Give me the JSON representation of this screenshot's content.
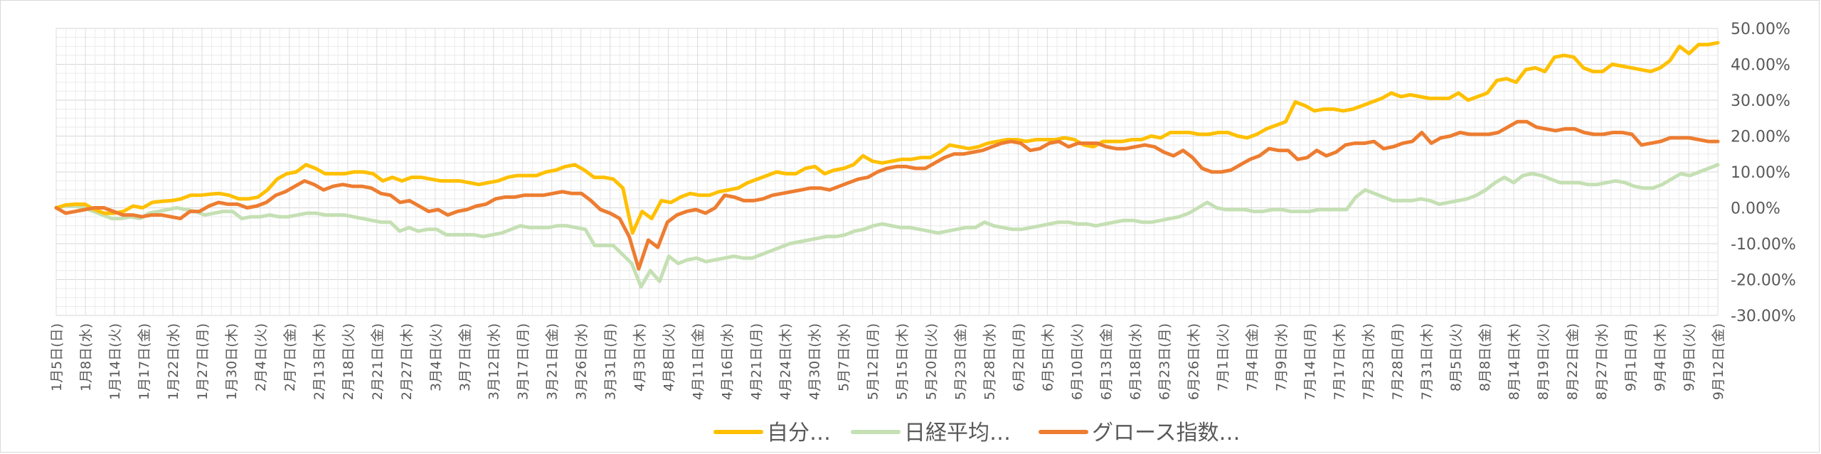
{
  "chart_data": {
    "type": "line",
    "title": "",
    "xlabel": "",
    "ylabel": "",
    "ylim": [
      -30,
      50
    ],
    "y_ticks": [
      "50.00%",
      "40.00%",
      "30.00%",
      "20.00%",
      "10.00%",
      "0.00%",
      "-10.00%",
      "-20.00%",
      "-30.00%"
    ],
    "y_tick_values": [
      50,
      40,
      30,
      20,
      10,
      0,
      -10,
      -20,
      -30
    ],
    "x_tick_labels": [
      "1月5日(日)",
      "1月8日(水)",
      "1月14日(火)",
      "1月17日(金)",
      "1月22日(水)",
      "1月27日(月)",
      "1月30日(木)",
      "2月4日(火)",
      "2月7日(金)",
      "2月13日(木)",
      "2月18日(火)",
      "2月21日(金)",
      "2月27日(木)",
      "3月4日(火)",
      "3月7日(金)",
      "3月12日(水)",
      "3月17日(月)",
      "3月21日(金)",
      "3月26日(水)",
      "3月31日(月)",
      "4月3日(木)",
      "4月8日(火)",
      "4月11日(金)",
      "4月16日(水)",
      "4月21日(月)",
      "4月24日(木)",
      "4月30日(水)",
      "5月7日(水)",
      "5月12日(月)",
      "5月15日(木)",
      "5月20日(火)",
      "5月23日(金)",
      "5月28日(水)",
      "6月2日(月)",
      "6月5日(木)",
      "6月10日(火)",
      "6月13日(金)",
      "6月18日(水)",
      "6月23日(月)",
      "6月26日(木)",
      "7月1日(火)",
      "7月4日(金)",
      "7月9日(水)",
      "7月14日(月)",
      "7月17日(木)",
      "7月23日(水)",
      "7月28日(月)",
      "7月31日(木)",
      "8月5日(火)",
      "8月8日(金)",
      "8月14日(木)",
      "8月19日(火)",
      "8月22日(金)",
      "8月27日(水)",
      "9月1日(月)",
      "9月4日(木)",
      "9月9日(火)",
      "9月12日(金)"
    ],
    "grid": true,
    "legend": "bottom",
    "series": [
      {
        "name": "自分…",
        "color": "#FFC000",
        "values": [
          0,
          0.8,
          1,
          1,
          -0.5,
          -1.5,
          -1.5,
          -1,
          0.5,
          0,
          1.5,
          1.8,
          2,
          2.5,
          3.5,
          3.5,
          3.8,
          4,
          3.5,
          2.5,
          2.5,
          3,
          5,
          8,
          9.5,
          10,
          12,
          11,
          9.5,
          9.5,
          9.5,
          10,
          10,
          9.5,
          7.5,
          8.5,
          7.5,
          8.5,
          8.5,
          8,
          7.5,
          7.5,
          7.5,
          7,
          6.5,
          7,
          7.5,
          8.5,
          9,
          9,
          9,
          10,
          10.5,
          11.5,
          12,
          10.5,
          8.5,
          8.5,
          8,
          5.5,
          -7,
          -1,
          -3,
          2,
          1.5,
          3,
          4,
          3.5,
          3.5,
          4.5,
          5,
          5.5,
          7,
          8,
          9,
          10,
          9.5,
          9.5,
          11,
          11.5,
          9.5,
          10.5,
          11,
          12,
          14.5,
          13,
          12.5,
          13,
          13.5,
          13.5,
          14,
          14,
          15.5,
          17.5,
          17,
          16.5,
          17,
          18,
          18.5,
          19,
          19,
          18.5,
          19,
          19,
          19,
          19.5,
          19,
          17.5,
          17,
          18.5,
          18.5,
          18.5,
          19,
          19,
          20,
          19.5,
          21,
          21,
          21,
          20.5,
          20.5,
          21,
          21,
          20,
          19.5,
          20.5,
          22,
          23,
          24,
          29.5,
          28.5,
          27,
          27.5,
          27.5,
          27,
          27.5,
          28.5,
          29.5,
          30.5,
          32,
          31,
          31.5,
          31,
          30.5,
          30.5,
          30.5,
          32,
          30,
          31,
          32,
          35.5,
          36,
          35,
          38.5,
          39,
          38,
          42,
          42.5,
          42,
          39,
          38,
          38,
          40,
          39.5,
          39,
          38.5,
          38,
          39,
          41,
          45,
          43,
          45.5,
          45.5,
          46
        ]
      },
      {
        "name": "日経平均…",
        "color": "#C5E0B4",
        "values": [
          0,
          0.5,
          0.5,
          0,
          -1,
          -2,
          -3,
          -3,
          -2.5,
          -3,
          -1.5,
          -1,
          -0.5,
          0,
          -0.5,
          -1,
          -2,
          -1.5,
          -1,
          -1,
          -3,
          -2.5,
          -2.5,
          -2,
          -2.5,
          -2.5,
          -2,
          -1.5,
          -1.5,
          -2,
          -2,
          -2,
          -2.5,
          -3,
          -3.5,
          -4,
          -4,
          -6.5,
          -5.5,
          -6.5,
          -6,
          -6,
          -7.5,
          -7.5,
          -7.5,
          -7.5,
          -8,
          -7.5,
          -7,
          -6,
          -5,
          -5.5,
          -5.5,
          -5.5,
          -5,
          -5,
          -5.5,
          -6,
          -10.5,
          -10.5,
          -10.5,
          -13,
          -15.5,
          -22,
          -17.5,
          -20.5,
          -13.5,
          -15.5,
          -14.5,
          -14,
          -15,
          -14.5,
          -14,
          -13.5,
          -14,
          -14,
          -13,
          -12,
          -11,
          -10,
          -9.5,
          -9,
          -8.5,
          -8,
          -8,
          -7.5,
          -6.5,
          -6,
          -5,
          -4.5,
          -5,
          -5.5,
          -5.5,
          -6,
          -6.5,
          -7,
          -6.5,
          -6,
          -5.5,
          -5.5,
          -4,
          -5,
          -5.5,
          -6,
          -6,
          -5.5,
          -5,
          -4.5,
          -4,
          -4,
          -4.5,
          -4.5,
          -5,
          -4.5,
          -4,
          -3.5,
          -3.5,
          -4,
          -4,
          -3.5,
          -3,
          -2.5,
          -1.5,
          0,
          1.5,
          0,
          -0.5,
          -0.5,
          -0.5,
          -1,
          -1,
          -0.5,
          -0.5,
          -1,
          -1,
          -1,
          -0.5,
          -0.5,
          -0.5,
          -0.5,
          3,
          5,
          4,
          3,
          2,
          2,
          2,
          2.5,
          2,
          1,
          1.5,
          2,
          2.5,
          3.5,
          5,
          7,
          8.5,
          7,
          9,
          9.5,
          9,
          8,
          7,
          7,
          7,
          6.5,
          6.5,
          7,
          7.5,
          7,
          6,
          5.5,
          5.5,
          6.5,
          8,
          9.5,
          9,
          10,
          11,
          12
        ]
      },
      {
        "name": "グロース指数…",
        "color": "#ED7D31",
        "values": [
          0,
          -1.5,
          -1,
          -0.5,
          0,
          0,
          -1,
          -2,
          -2,
          -2.5,
          -2,
          -2,
          -2.5,
          -3,
          -1,
          -1,
          0.5,
          1.5,
          1,
          1,
          0,
          0.5,
          1.5,
          3.5,
          4.5,
          6,
          7.5,
          6.5,
          5,
          6,
          6.5,
          6,
          6,
          5.5,
          4,
          3.5,
          1.5,
          2,
          0.5,
          -1,
          -0.5,
          -2,
          -1,
          -0.5,
          0.5,
          1,
          2.5,
          3,
          3,
          3.5,
          3.5,
          3.5,
          4,
          4.5,
          4,
          4,
          2,
          -0.5,
          -1.5,
          -3,
          -8,
          -17,
          -9,
          -11,
          -4,
          -2,
          -1,
          -0.5,
          -1.5,
          0,
          3.5,
          3,
          2,
          2,
          2.5,
          3.5,
          4,
          4.5,
          5,
          5.5,
          5.5,
          5,
          6,
          7,
          8,
          8.5,
          10,
          11,
          11.5,
          11.5,
          11,
          11,
          12.5,
          14,
          15,
          15,
          15.5,
          16,
          17,
          18,
          18.5,
          18,
          16,
          16.5,
          18,
          18.5,
          17,
          18,
          18,
          18,
          17,
          16.5,
          16.5,
          17,
          17.5,
          17,
          15.5,
          14.5,
          16,
          14,
          11,
          10,
          10,
          10.5,
          12,
          13.5,
          14.5,
          16.5,
          16,
          16,
          13.5,
          14,
          16,
          14.5,
          15.5,
          17.5,
          18,
          18,
          18.5,
          16.5,
          17,
          18,
          18.5,
          21,
          18,
          19.5,
          20,
          21,
          20.5,
          20.5,
          20.5,
          21,
          22.5,
          24,
          24,
          22.5,
          22,
          21.5,
          22,
          22,
          21,
          20.5,
          20.5,
          21,
          21,
          20.5,
          17.5,
          18,
          18.5,
          19.5,
          19.5,
          19.5,
          19,
          18.5,
          18.5
        ]
      }
    ]
  }
}
